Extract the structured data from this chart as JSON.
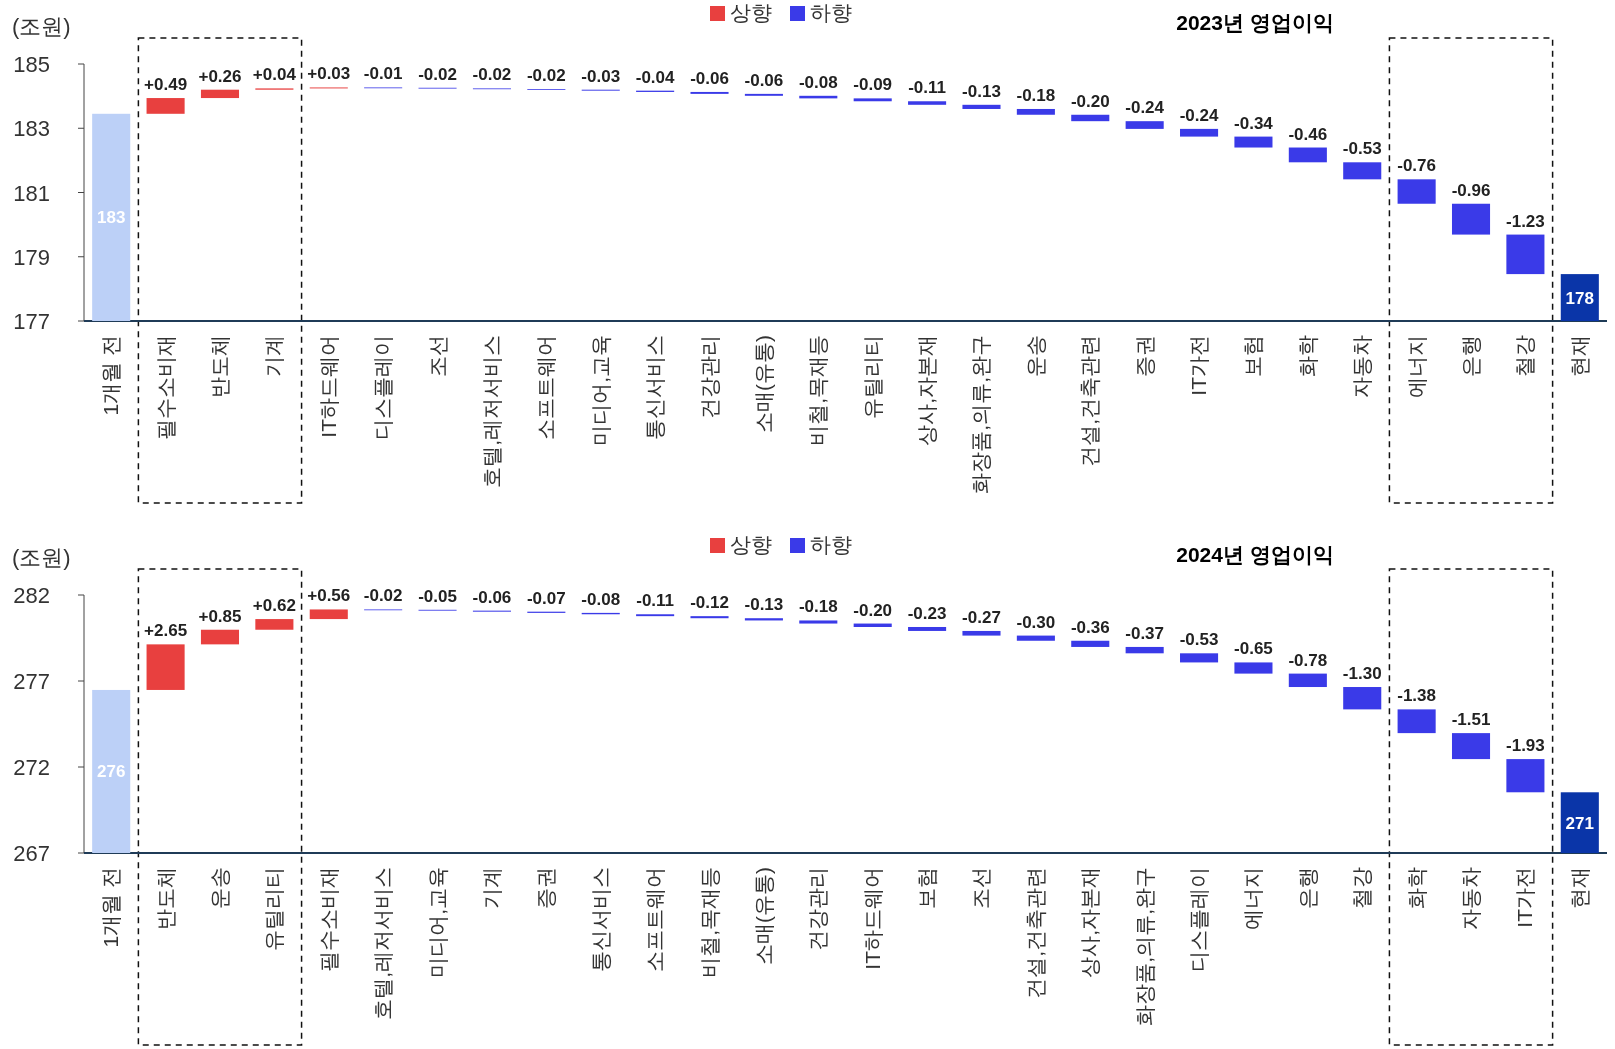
{
  "chart_data": [
    {
      "type": "bar",
      "title": "2023년 영업이익",
      "ylabel": "(조원)",
      "ylim": [
        177,
        185
      ],
      "yticks": [
        177,
        179,
        181,
        183,
        185
      ],
      "legend": "top",
      "categories": [
        "1개월 전",
        "필수소비재",
        "반도체",
        "기계",
        "IT하드웨어",
        "디스플레이",
        "조선",
        "호텔,레저서비스",
        "소프트웨어",
        "미디어,교육",
        "통신서비스",
        "건강관리",
        "소매(유통)",
        "비철,목재등",
        "유틸리티",
        "상사,자본재",
        "화장품,의류,완구",
        "운송",
        "건설,건축관련",
        "증권",
        "IT가전",
        "보험",
        "화학",
        "자동차",
        "에너지",
        "은행",
        "철강",
        "현재"
      ],
      "series": [
        {
          "values": [
            183.45,
            null,
            null,
            null,
            null,
            null,
            null,
            null,
            null,
            null,
            null,
            null,
            null,
            null,
            null,
            null,
            null,
            null,
            null,
            null,
            null,
            null,
            null,
            null,
            null,
            null,
            null,
            178.46
          ],
          "colors": [
            "#bcd0f7",
            null,
            null,
            null,
            null,
            null,
            null,
            null,
            null,
            null,
            null,
            null,
            null,
            null,
            null,
            null,
            null,
            null,
            null,
            null,
            null,
            null,
            null,
            null,
            null,
            null,
            null,
            "#0a35a8"
          ],
          "value_labels": [
            "183",
            null,
            null,
            null,
            null,
            null,
            null,
            null,
            null,
            null,
            null,
            null,
            null,
            null,
            null,
            null,
            null,
            null,
            null,
            null,
            null,
            null,
            null,
            null,
            null,
            null,
            null,
            "178"
          ]
        },
        {
          "name": "상향",
          "color": "#e8403f",
          "values": [
            null,
            0.49,
            0.26,
            0.04,
            0.03,
            null,
            null,
            null,
            null,
            null,
            null,
            null,
            null,
            null,
            null,
            null,
            null,
            null,
            null,
            null,
            null,
            null,
            null,
            null,
            null,
            null,
            null,
            null
          ],
          "base": [
            null,
            183.45,
            183.94,
            184.2,
            184.24,
            null,
            null,
            null,
            null,
            null,
            null,
            null,
            null,
            null,
            null,
            null,
            null,
            null,
            null,
            null,
            null,
            null,
            null,
            null,
            null,
            null,
            null,
            null
          ],
          "value_labels": [
            null,
            "+0.49",
            "+0.26",
            "+0.04",
            "+0.03",
            null,
            null,
            null,
            null,
            null,
            null,
            null,
            null,
            null,
            null,
            null,
            null,
            null,
            null,
            null,
            null,
            null,
            null,
            null,
            null,
            null,
            null,
            null
          ]
        },
        {
          "name": "하향",
          "color": "#3a3ae8",
          "values": [
            null,
            null,
            null,
            null,
            null,
            -0.01,
            -0.02,
            -0.02,
            -0.02,
            -0.03,
            -0.04,
            -0.06,
            -0.06,
            -0.08,
            -0.09,
            -0.11,
            -0.13,
            -0.18,
            -0.2,
            -0.24,
            -0.24,
            -0.34,
            -0.46,
            -0.53,
            -0.76,
            -0.96,
            -1.23,
            null
          ],
          "base": [
            null,
            null,
            null,
            null,
            null,
            184.27,
            184.26,
            184.24,
            184.22,
            184.2,
            184.17,
            184.13,
            184.07,
            184.01,
            183.93,
            183.84,
            183.73,
            183.6,
            183.42,
            183.22,
            182.98,
            182.74,
            182.4,
            181.94,
            181.41,
            180.65,
            179.69,
            null
          ],
          "value_labels": [
            null,
            null,
            null,
            null,
            null,
            "-0.01",
            "-0.02",
            "-0.02",
            "-0.02",
            "-0.03",
            "-0.04",
            "-0.06",
            "-0.06",
            "-0.08",
            "-0.09",
            "-0.11",
            "-0.13",
            "-0.18",
            "-0.20",
            "-0.24",
            "-0.24",
            "-0.34",
            "-0.46",
            "-0.53",
            "-0.76",
            "-0.96",
            "-1.23",
            null
          ]
        }
      ]
    },
    {
      "type": "bar",
      "title": "2024년 영업이익",
      "ylabel": "(조원)",
      "ylim": [
        267,
        282
      ],
      "yticks": [
        267,
        272,
        277,
        282
      ],
      "legend": "top",
      "categories": [
        "1개월 전",
        "반도체",
        "운송",
        "유틸리티",
        "필수소비재",
        "호텔,레저서비스",
        "미디어,교육",
        "기계",
        "증권",
        "통신서비스",
        "소프트웨어",
        "비철,목재등",
        "소매(유통)",
        "건강관리",
        "IT하드웨어",
        "보험",
        "조선",
        "건설,건축관련",
        "상사,자본재",
        "화장품,의류,완구",
        "디스플레이",
        "에너지",
        "은행",
        "철강",
        "화학",
        "자동차",
        "IT가전",
        "현재"
      ],
      "series": [
        {
          "values": [
            276.48,
            null,
            null,
            null,
            null,
            null,
            null,
            null,
            null,
            null,
            null,
            null,
            null,
            null,
            null,
            null,
            null,
            null,
            null,
            null,
            null,
            null,
            null,
            null,
            null,
            null,
            null,
            270.53
          ],
          "colors": [
            "#bcd0f7",
            null,
            null,
            null,
            null,
            null,
            null,
            null,
            null,
            null,
            null,
            null,
            null,
            null,
            null,
            null,
            null,
            null,
            null,
            null,
            null,
            null,
            null,
            null,
            null,
            null,
            null,
            "#0a35a8"
          ],
          "value_labels": [
            "276",
            null,
            null,
            null,
            null,
            null,
            null,
            null,
            null,
            null,
            null,
            null,
            null,
            null,
            null,
            null,
            null,
            null,
            null,
            null,
            null,
            null,
            null,
            null,
            null,
            null,
            null,
            "271"
          ]
        },
        {
          "name": "상향",
          "color": "#e8403f",
          "values": [
            null,
            2.65,
            0.85,
            0.62,
            0.56,
            null,
            null,
            null,
            null,
            null,
            null,
            null,
            null,
            null,
            null,
            null,
            null,
            null,
            null,
            null,
            null,
            null,
            null,
            null,
            null,
            null,
            null,
            null
          ],
          "base": [
            null,
            276.48,
            279.13,
            279.98,
            280.6,
            null,
            null,
            null,
            null,
            null,
            null,
            null,
            null,
            null,
            null,
            null,
            null,
            null,
            null,
            null,
            null,
            null,
            null,
            null,
            null,
            null,
            null,
            null
          ],
          "value_labels": [
            null,
            "+2.65",
            "+0.85",
            "+0.62",
            "+0.56",
            null,
            null,
            null,
            null,
            null,
            null,
            null,
            null,
            null,
            null,
            null,
            null,
            null,
            null,
            null,
            null,
            null,
            null,
            null,
            null,
            null,
            null,
            null
          ]
        },
        {
          "name": "하향",
          "color": "#3a3ae8",
          "values": [
            null,
            null,
            null,
            null,
            null,
            -0.02,
            -0.05,
            -0.06,
            -0.07,
            -0.08,
            -0.11,
            -0.12,
            -0.13,
            -0.18,
            -0.2,
            -0.23,
            -0.27,
            -0.3,
            -0.36,
            -0.37,
            -0.53,
            -0.65,
            -0.78,
            -1.3,
            -1.38,
            -1.51,
            -1.93,
            null
          ],
          "base": [
            null,
            null,
            null,
            null,
            null,
            281.16,
            281.14,
            281.09,
            281.03,
            280.96,
            280.88,
            280.77,
            280.65,
            280.52,
            280.34,
            280.14,
            279.91,
            279.64,
            279.34,
            278.98,
            278.61,
            278.08,
            277.43,
            276.65,
            275.35,
            273.97,
            272.46,
            null
          ],
          "value_labels": [
            null,
            null,
            null,
            null,
            null,
            "-0.02",
            "-0.05",
            "-0.06",
            "-0.07",
            "-0.08",
            "-0.11",
            "-0.12",
            "-0.13",
            "-0.18",
            "-0.20",
            "-0.23",
            "-0.27",
            "-0.30",
            "-0.36",
            "-0.37",
            "-0.53",
            "-0.65",
            "-0.78",
            "-1.30",
            "-1.38",
            "-1.51",
            "-1.93",
            null
          ]
        }
      ]
    }
  ]
}
